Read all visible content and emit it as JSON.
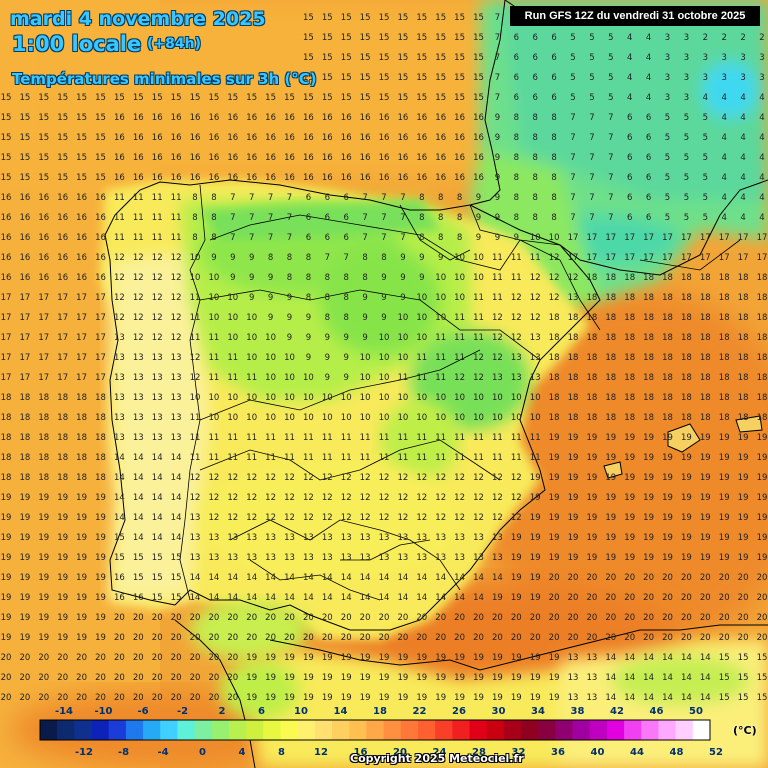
{
  "title": {
    "date": "mardi 4 novembre 2025",
    "time": "1:00 locale",
    "lead": "(+84h)",
    "parameter": "Températures minimales sur 3h (°C)"
  },
  "run_info": "Run GFS 12Z du vendredi 31 octobre 2025",
  "copyright": "Copyright 2025 Meteociel.fr",
  "scale": {
    "unit": "(°C)",
    "top_labels": [
      "-14",
      "-10",
      "-6",
      "-2",
      "2",
      "6",
      "10",
      "14",
      "18",
      "22",
      "26",
      "30",
      "34",
      "38",
      "42",
      "46",
      "50"
    ],
    "bottom_labels": [
      "-12",
      "-8",
      "-4",
      "0",
      "4",
      "8",
      "12",
      "16",
      "20",
      "24",
      "28",
      "32",
      "36",
      "40",
      "44",
      "48",
      "52"
    ],
    "colors": [
      "#0a1a4a",
      "#0e2a6e",
      "#10308f",
      "#0c22b8",
      "#1a3cd8",
      "#1e78ee",
      "#26aaf6",
      "#40d0ff",
      "#5ef0d8",
      "#7cf0a0",
      "#98f070",
      "#b8f050",
      "#d0f040",
      "#e8f840",
      "#fafa50",
      "#fff070",
      "#ffe070",
      "#ffd060",
      "#ffc050",
      "#ffa848",
      "#ff9040",
      "#ff7838",
      "#ff6030",
      "#f84028",
      "#f02020",
      "#e00018",
      "#c80010",
      "#a80018",
      "#900020",
      "#880040",
      "#900070",
      "#a000a0",
      "#c000c0",
      "#e000e0",
      "#f040f0",
      "#f878f8",
      "#ffa8ff",
      "#ffd0ff",
      "#ffffff"
    ]
  },
  "land_color": "#f5e060",
  "sea_color": "#f2a030",
  "map_values": "Gridded minimum temperature values over the Iberian Peninsula, Balearic Islands, northern Morocco and Algeria"
}
